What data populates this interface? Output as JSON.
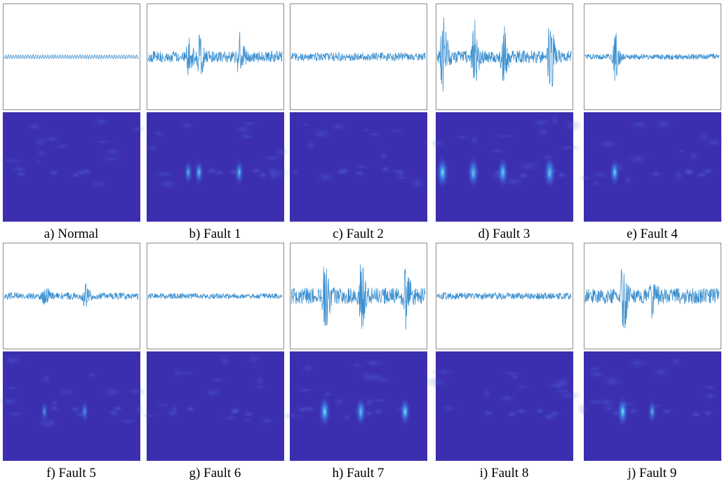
{
  "panels": [
    {
      "caption": "a) Normal"
    },
    {
      "caption": "b) Fault 1"
    },
    {
      "caption": "c) Fault 2"
    },
    {
      "caption": "d) Fault 3"
    },
    {
      "caption": "e) Fault 4"
    },
    {
      "caption": "f) Fault 5"
    },
    {
      "caption": "g) Fault 6"
    },
    {
      "caption": "h) Fault 7"
    },
    {
      "caption": "i) Fault 8"
    },
    {
      "caption": "j) Fault 9"
    }
  ]
}
